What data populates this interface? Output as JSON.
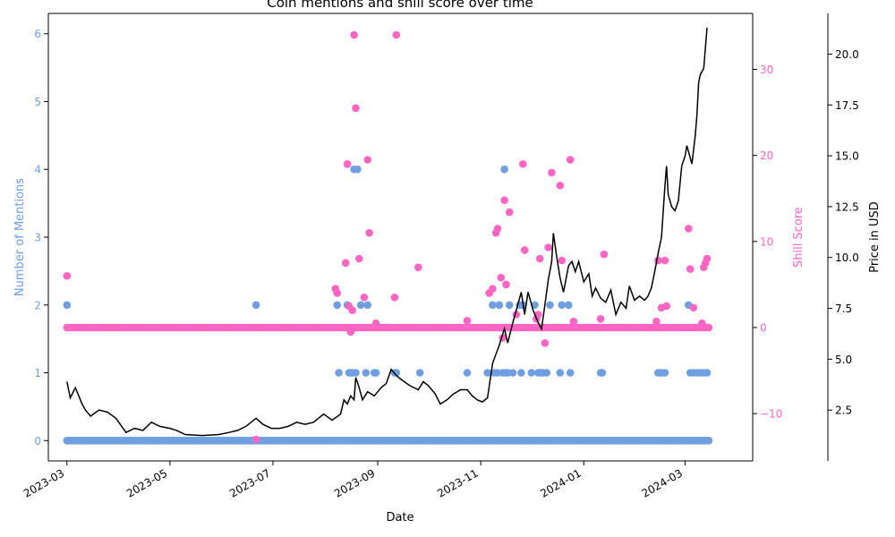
{
  "chart_data": {
    "type": "scatter",
    "title": "Coin mentions and shill score over time",
    "xlabel": "Date",
    "x_range": [
      "2023-02-18",
      "2024-04-10"
    ],
    "x_ticks": [
      "2023-03-01",
      "2023-05-01",
      "2023-07-01",
      "2023-09-01",
      "2023-11-01",
      "2024-01-01",
      "2024-03-01"
    ],
    "x_tick_labels": [
      "2023-03",
      "2023-05",
      "2023-07",
      "2023-09",
      "2023-11",
      "2024-01",
      "2024-03"
    ],
    "axes": {
      "mentions": {
        "label": "Number of Mentions",
        "color": "#6f9fe0",
        "range": [
          -0.3,
          6.3
        ],
        "ticks": [
          0,
          1,
          2,
          3,
          4,
          5,
          6
        ]
      },
      "shill": {
        "label": "Shill Score",
        "color": "#ff66c4",
        "range": [
          -15.5,
          36.5
        ],
        "ticks": [
          -10,
          0,
          10,
          20,
          30
        ]
      },
      "price": {
        "label": "Price in USD",
        "color": "#000000",
        "range": [
          0.0,
          22.0
        ],
        "ticks": [
          2.5,
          5.0,
          7.5,
          10.0,
          12.5,
          15.0,
          17.5,
          20.0
        ],
        "tick_labels": [
          "2.5",
          "5.0",
          "7.5",
          "10.0",
          "12.5",
          "15.0",
          "17.5",
          "20.0"
        ]
      }
    },
    "grid": false,
    "series": [
      {
        "name": "Number of Mentions",
        "kind": "scatter",
        "color": "#6f9fe0",
        "axis": "mentions",
        "baseline": {
          "from": "2023-03-01",
          "to": "2024-03-15",
          "value": 0
        },
        "points": [
          [
            "2023-03-01",
            2
          ],
          [
            "2023-06-21",
            2
          ],
          [
            "2023-08-08",
            2
          ],
          [
            "2023-08-09",
            1
          ],
          [
            "2023-08-14",
            2
          ],
          [
            "2023-08-15",
            1
          ],
          [
            "2023-08-16",
            1
          ],
          [
            "2023-08-17",
            1
          ],
          [
            "2023-08-18",
            4
          ],
          [
            "2023-08-19",
            1
          ],
          [
            "2023-08-20",
            4
          ],
          [
            "2023-08-22",
            2
          ],
          [
            "2023-08-25",
            1
          ],
          [
            "2023-08-26",
            2
          ],
          [
            "2023-08-30",
            1
          ],
          [
            "2023-08-31",
            1
          ],
          [
            "2023-09-11",
            1
          ],
          [
            "2023-09-12",
            1
          ],
          [
            "2023-09-26",
            1
          ],
          [
            "2023-10-24",
            1
          ],
          [
            "2023-11-05",
            1
          ],
          [
            "2023-11-08",
            2
          ],
          [
            "2023-11-09",
            1
          ],
          [
            "2023-11-11",
            1
          ],
          [
            "2023-11-12",
            2
          ],
          [
            "2023-11-14",
            1
          ],
          [
            "2023-11-15",
            4
          ],
          [
            "2023-11-16",
            1
          ],
          [
            "2023-11-17",
            1
          ],
          [
            "2023-11-18",
            2
          ],
          [
            "2023-11-20",
            1
          ],
          [
            "2023-11-24",
            2
          ],
          [
            "2023-11-25",
            1
          ],
          [
            "2023-11-26",
            2
          ],
          [
            "2023-12-01",
            1
          ],
          [
            "2023-12-03",
            2
          ],
          [
            "2023-12-05",
            1
          ],
          [
            "2023-12-06",
            1
          ],
          [
            "2023-12-07",
            1
          ],
          [
            "2023-12-08",
            1
          ],
          [
            "2023-12-10",
            1
          ],
          [
            "2023-12-12",
            2
          ],
          [
            "2023-12-18",
            1
          ],
          [
            "2023-12-19",
            2
          ],
          [
            "2023-12-23",
            2
          ],
          [
            "2023-12-24",
            1
          ],
          [
            "2024-01-11",
            1
          ],
          [
            "2024-01-12",
            1
          ],
          [
            "2024-02-14",
            1
          ],
          [
            "2024-02-15",
            1
          ],
          [
            "2024-02-16",
            1
          ],
          [
            "2024-02-18",
            1
          ],
          [
            "2024-03-03",
            2
          ],
          [
            "2024-03-04",
            1
          ],
          [
            "2024-03-06",
            1
          ],
          [
            "2024-03-08",
            1
          ],
          [
            "2024-03-10",
            1
          ],
          [
            "2024-03-12",
            1
          ],
          [
            "2024-03-14",
            1
          ]
        ]
      },
      {
        "name": "Shill Score",
        "kind": "scatter",
        "color": "#ff66c4",
        "axis": "shill",
        "baseline": {
          "from": "2023-03-01",
          "to": "2024-03-15",
          "value": 0
        },
        "points": [
          [
            "2023-03-01",
            6
          ],
          [
            "2023-06-21",
            -13
          ],
          [
            "2023-08-07",
            4.5
          ],
          [
            "2023-08-08",
            4
          ],
          [
            "2023-08-13",
            7.5
          ],
          [
            "2023-08-14",
            19
          ],
          [
            "2023-08-15",
            2.5
          ],
          [
            "2023-08-16",
            -0.5
          ],
          [
            "2023-08-17",
            2
          ],
          [
            "2023-08-18",
            34
          ],
          [
            "2023-08-19",
            25.5
          ],
          [
            "2023-08-21",
            8
          ],
          [
            "2023-08-24",
            3.5
          ],
          [
            "2023-08-26",
            19.5
          ],
          [
            "2023-08-27",
            11
          ],
          [
            "2023-08-31",
            0.5
          ],
          [
            "2023-09-11",
            3.5
          ],
          [
            "2023-09-12",
            34
          ],
          [
            "2023-09-25",
            7
          ],
          [
            "2023-10-24",
            0.8
          ],
          [
            "2023-11-06",
            4
          ],
          [
            "2023-11-08",
            4.5
          ],
          [
            "2023-11-10",
            11
          ],
          [
            "2023-11-11",
            11.5
          ],
          [
            "2023-11-13",
            5.8
          ],
          [
            "2023-11-14",
            -1.2
          ],
          [
            "2023-11-15",
            14.8
          ],
          [
            "2023-11-16",
            5
          ],
          [
            "2023-11-17",
            0
          ],
          [
            "2023-11-18",
            13.4
          ],
          [
            "2023-11-22",
            1.5
          ],
          [
            "2023-11-24",
            0
          ],
          [
            "2023-11-26",
            19
          ],
          [
            "2023-11-27",
            9
          ],
          [
            "2023-12-04",
            1
          ],
          [
            "2023-12-05",
            1.5
          ],
          [
            "2023-12-06",
            8
          ],
          [
            "2023-12-09",
            -1.8
          ],
          [
            "2023-12-11",
            9.3
          ],
          [
            "2023-12-13",
            18
          ],
          [
            "2023-12-18",
            16.5
          ],
          [
            "2023-12-19",
            7.8
          ],
          [
            "2023-12-24",
            19.5
          ],
          [
            "2023-12-26",
            0.7
          ],
          [
            "2024-01-11",
            1
          ],
          [
            "2024-01-13",
            8.5
          ],
          [
            "2024-02-13",
            0.7
          ],
          [
            "2024-02-14",
            7.8
          ],
          [
            "2024-02-16",
            2.3
          ],
          [
            "2024-02-18",
            7.8
          ],
          [
            "2024-02-19",
            2.5
          ],
          [
            "2024-03-03",
            11.5
          ],
          [
            "2024-03-04",
            6.8
          ],
          [
            "2024-03-06",
            2.3
          ],
          [
            "2024-03-11",
            0.5
          ],
          [
            "2024-03-12",
            7
          ],
          [
            "2024-03-13",
            7.5
          ],
          [
            "2024-03-14",
            8
          ]
        ]
      },
      {
        "name": "Price in USD",
        "kind": "line",
        "color": "#000000",
        "axis": "price",
        "points": [
          [
            "2023-03-01",
            3.9
          ],
          [
            "2023-03-03",
            3.1
          ],
          [
            "2023-03-06",
            3.6
          ],
          [
            "2023-03-08",
            3.2
          ],
          [
            "2023-03-10",
            2.8
          ],
          [
            "2023-03-12",
            2.5
          ],
          [
            "2023-03-15",
            2.2
          ],
          [
            "2023-03-20",
            2.5
          ],
          [
            "2023-03-25",
            2.4
          ],
          [
            "2023-03-30",
            2.1
          ],
          [
            "2023-04-05",
            1.4
          ],
          [
            "2023-04-10",
            1.6
          ],
          [
            "2023-04-15",
            1.5
          ],
          [
            "2023-04-20",
            1.9
          ],
          [
            "2023-04-25",
            1.7
          ],
          [
            "2023-05-01",
            1.6
          ],
          [
            "2023-05-05",
            1.5
          ],
          [
            "2023-05-10",
            1.3
          ],
          [
            "2023-05-20",
            1.25
          ],
          [
            "2023-05-30",
            1.3
          ],
          [
            "2023-06-05",
            1.4
          ],
          [
            "2023-06-10",
            1.5
          ],
          [
            "2023-06-15",
            1.7
          ],
          [
            "2023-06-21",
            2.1
          ],
          [
            "2023-06-25",
            1.8
          ],
          [
            "2023-06-30",
            1.6
          ],
          [
            "2023-07-05",
            1.6
          ],
          [
            "2023-07-10",
            1.7
          ],
          [
            "2023-07-15",
            1.9
          ],
          [
            "2023-07-20",
            1.8
          ],
          [
            "2023-07-25",
            1.9
          ],
          [
            "2023-07-31",
            2.3
          ],
          [
            "2023-08-05",
            2.0
          ],
          [
            "2023-08-10",
            2.3
          ],
          [
            "2023-08-12",
            3.0
          ],
          [
            "2023-08-14",
            2.8
          ],
          [
            "2023-08-16",
            3.2
          ],
          [
            "2023-08-18",
            3.0
          ],
          [
            "2023-08-19",
            4.1
          ],
          [
            "2023-08-21",
            3.6
          ],
          [
            "2023-08-23",
            3.0
          ],
          [
            "2023-08-26",
            3.4
          ],
          [
            "2023-08-30",
            3.2
          ],
          [
            "2023-09-03",
            3.6
          ],
          [
            "2023-09-06",
            3.8
          ],
          [
            "2023-09-09",
            4.5
          ],
          [
            "2023-09-12",
            4.2
          ],
          [
            "2023-09-15",
            4.0
          ],
          [
            "2023-09-20",
            3.7
          ],
          [
            "2023-09-25",
            3.5
          ],
          [
            "2023-09-28",
            3.9
          ],
          [
            "2023-10-01",
            3.7
          ],
          [
            "2023-10-05",
            3.3
          ],
          [
            "2023-10-08",
            2.8
          ],
          [
            "2023-10-12",
            3.0
          ],
          [
            "2023-10-16",
            3.3
          ],
          [
            "2023-10-20",
            3.5
          ],
          [
            "2023-10-24",
            3.5
          ],
          [
            "2023-10-27",
            3.2
          ],
          [
            "2023-10-30",
            3.0
          ],
          [
            "2023-11-02",
            2.9
          ],
          [
            "2023-11-05",
            3.1
          ],
          [
            "2023-11-08",
            4.8
          ],
          [
            "2023-11-12",
            5.7
          ],
          [
            "2023-11-15",
            6.5
          ],
          [
            "2023-11-17",
            5.8
          ],
          [
            "2023-11-20",
            6.8
          ],
          [
            "2023-11-23",
            7.7
          ],
          [
            "2023-11-25",
            8.3
          ],
          [
            "2023-11-27",
            7.2
          ],
          [
            "2023-11-29",
            8.3
          ],
          [
            "2023-12-02",
            7.4
          ],
          [
            "2023-12-05",
            6.8
          ],
          [
            "2023-12-07",
            6.5
          ],
          [
            "2023-12-09",
            7.7
          ],
          [
            "2023-12-11",
            8.9
          ],
          [
            "2023-12-13",
            9.8
          ],
          [
            "2023-12-14",
            11.2
          ],
          [
            "2023-12-16",
            10.0
          ],
          [
            "2023-12-18",
            9.0
          ],
          [
            "2023-12-20",
            8.3
          ],
          [
            "2023-12-23",
            9.6
          ],
          [
            "2023-12-25",
            9.8
          ],
          [
            "2023-12-27",
            9.3
          ],
          [
            "2023-12-29",
            9.8
          ],
          [
            "2024-01-01",
            8.8
          ],
          [
            "2024-01-04",
            9.2
          ],
          [
            "2024-01-06",
            8.1
          ],
          [
            "2024-01-08",
            8.5
          ],
          [
            "2024-01-11",
            8.0
          ],
          [
            "2024-01-14",
            7.8
          ],
          [
            "2024-01-17",
            8.4
          ],
          [
            "2024-01-20",
            7.2
          ],
          [
            "2024-01-23",
            7.8
          ],
          [
            "2024-01-26",
            7.5
          ],
          [
            "2024-01-28",
            8.6
          ],
          [
            "2024-01-31",
            7.9
          ],
          [
            "2024-02-03",
            8.1
          ],
          [
            "2024-02-06",
            7.9
          ],
          [
            "2024-02-08",
            8.1
          ],
          [
            "2024-02-10",
            8.5
          ],
          [
            "2024-02-12",
            9.3
          ],
          [
            "2024-02-14",
            10.2
          ],
          [
            "2024-02-16",
            11.0
          ],
          [
            "2024-02-18",
            13.5
          ],
          [
            "2024-02-19",
            14.5
          ],
          [
            "2024-02-20",
            13.1
          ],
          [
            "2024-02-22",
            12.5
          ],
          [
            "2024-02-24",
            12.3
          ],
          [
            "2024-02-26",
            12.8
          ],
          [
            "2024-02-28",
            14.5
          ],
          [
            "2024-03-01",
            15.0
          ],
          [
            "2024-03-02",
            15.5
          ],
          [
            "2024-03-03",
            15.2
          ],
          [
            "2024-03-05",
            14.6
          ],
          [
            "2024-03-07",
            16.0
          ],
          [
            "2024-03-08",
            17.0
          ],
          [
            "2024-03-09",
            18.6
          ],
          [
            "2024-03-10",
            19.0
          ],
          [
            "2024-03-12",
            19.3
          ],
          [
            "2024-03-14",
            21.3
          ]
        ]
      }
    ]
  }
}
